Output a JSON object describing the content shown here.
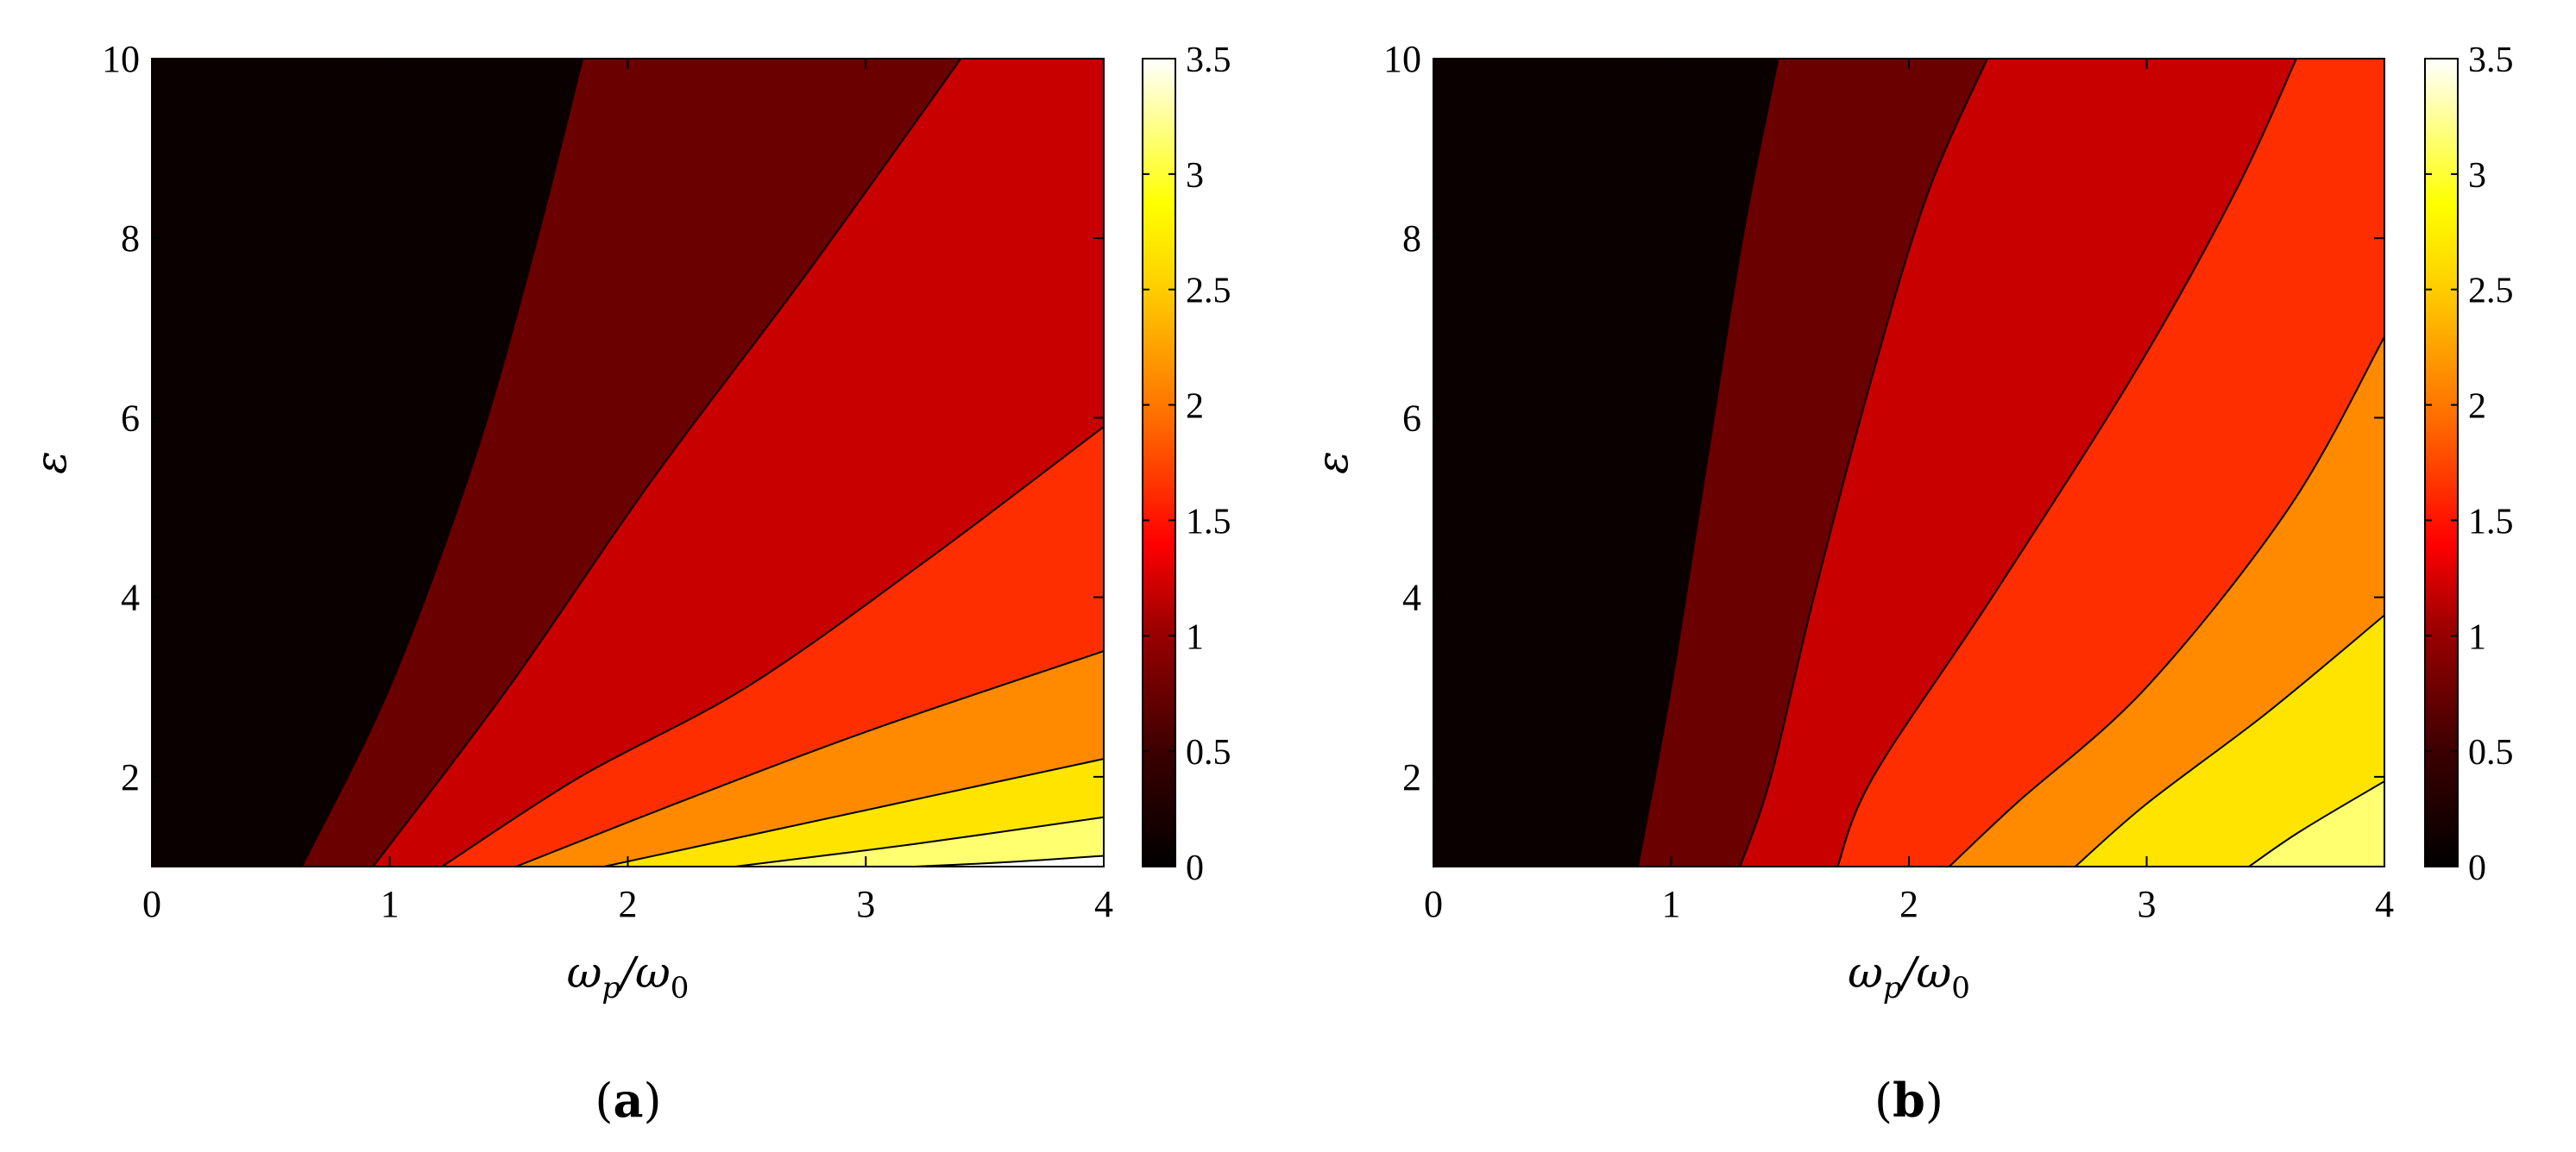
{
  "chart_data": [
    {
      "type": "heatmap",
      "subtype": "filled-contour",
      "panel_label": "a",
      "xlabel": "ωp/ω0",
      "ylabel": "ε",
      "xlim": [
        0,
        4
      ],
      "ylim": [
        1,
        10
      ],
      "x_ticks": [
        "0",
        "1",
        "2",
        "3",
        "4"
      ],
      "y_ticks": [
        "2",
        "4",
        "6",
        "8",
        "10"
      ],
      "colorbar": {
        "range": [
          0,
          3.5
        ],
        "ticks": [
          "0",
          "0.5",
          "1",
          "1.5",
          "2",
          "2.5",
          "3",
          "3.5"
        ],
        "colormap": "hot"
      },
      "grid": false,
      "contour_levels": [
        0.5,
        1,
        1.5,
        2,
        2.5,
        3,
        3.5
      ],
      "fill_colors": [
        "#0a0000",
        "#6b0000",
        "#c80000",
        "#ff2e00",
        "#ff8a00",
        "#ffe400",
        "#ffff70",
        "#ffffff"
      ],
      "contours": [
        {
          "level": 0.5,
          "points": [
            [
              0.63,
              1
            ],
            [
              1.0,
              3
            ],
            [
              1.35,
              5.5
            ],
            [
              1.6,
              7.8
            ],
            [
              1.81,
              10
            ]
          ]
        },
        {
          "level": 1,
          "points": [
            [
              0.93,
              1
            ],
            [
              1.5,
              3
            ],
            [
              2.1,
              5.3
            ],
            [
              2.75,
              7.6
            ],
            [
              3.4,
              10
            ]
          ]
        },
        {
          "level": 1.5,
          "points": [
            [
              1.22,
              1
            ],
            [
              1.8,
              2
            ],
            [
              2.5,
              3
            ],
            [
              3.25,
              4.4
            ],
            [
              4.0,
              5.9
            ]
          ]
        },
        {
          "level": 2,
          "points": [
            [
              1.53,
              1
            ],
            [
              2.2,
              1.7
            ],
            [
              3.0,
              2.5
            ],
            [
              4.0,
              3.4
            ]
          ]
        },
        {
          "level": 2.5,
          "points": [
            [
              1.9,
              1
            ],
            [
              2.6,
              1.4
            ],
            [
              3.3,
              1.8
            ],
            [
              4.0,
              2.2
            ]
          ]
        },
        {
          "level": 3,
          "points": [
            [
              2.45,
              1
            ],
            [
              3.2,
              1.25
            ],
            [
              4.0,
              1.55
            ]
          ]
        },
        {
          "level": 3.5,
          "points": [
            [
              3.2,
              1
            ],
            [
              3.6,
              1.05
            ],
            [
              4.0,
              1.12
            ]
          ]
        }
      ]
    },
    {
      "type": "heatmap",
      "subtype": "filled-contour",
      "panel_label": "b",
      "xlabel": "ωp/ω0",
      "ylabel": "ε",
      "xlim": [
        0,
        4
      ],
      "ylim": [
        1,
        10
      ],
      "x_ticks": [
        "0",
        "1",
        "2",
        "3",
        "4"
      ],
      "y_ticks": [
        "2",
        "4",
        "6",
        "8",
        "10"
      ],
      "colorbar": {
        "range": [
          0,
          3.5
        ],
        "ticks": [
          "0",
          "0.5",
          "1",
          "1.5",
          "2",
          "2.5",
          "3",
          "3.5"
        ],
        "colormap": "hot"
      },
      "grid": false,
      "contour_levels": [
        0.5,
        1,
        1.5,
        2,
        2.5,
        3
      ],
      "fill_colors": [
        "#0a0000",
        "#6b0000",
        "#c80000",
        "#ff2e00",
        "#ff8a00",
        "#ffe400",
        "#ffff70"
      ],
      "contours": [
        {
          "level": 0.5,
          "points": [
            [
              0.86,
              1
            ],
            [
              1.0,
              3
            ],
            [
              1.15,
              5.5
            ],
            [
              1.3,
              8
            ],
            [
              1.45,
              10
            ]
          ]
        },
        {
          "level": 1,
          "points": [
            [
              1.29,
              1
            ],
            [
              1.42,
              2
            ],
            [
              1.6,
              4
            ],
            [
              1.85,
              6.5
            ],
            [
              2.08,
              8.5
            ],
            [
              2.33,
              10
            ]
          ]
        },
        {
          "level": 1.5,
          "points": [
            [
              1.7,
              1
            ],
            [
              1.85,
              2
            ],
            [
              2.35,
              4
            ],
            [
              2.95,
              6.5
            ],
            [
              3.37,
              8.5
            ],
            [
              3.63,
              10
            ]
          ]
        },
        {
          "level": 2,
          "points": [
            [
              2.17,
              1
            ],
            [
              2.45,
              1.7
            ],
            [
              3.0,
              3
            ],
            [
              3.6,
              5
            ],
            [
              4.0,
              6.9
            ]
          ]
        },
        {
          "level": 2.5,
          "points": [
            [
              2.7,
              1
            ],
            [
              3.0,
              1.7
            ],
            [
              3.5,
              2.7
            ],
            [
              4.0,
              3.8
            ]
          ]
        },
        {
          "level": 3,
          "points": [
            [
              3.43,
              1
            ],
            [
              3.65,
              1.4
            ],
            [
              4.0,
              1.95
            ]
          ]
        }
      ]
    }
  ]
}
